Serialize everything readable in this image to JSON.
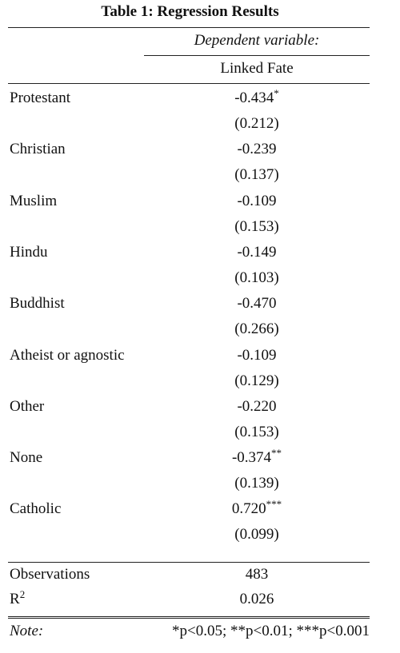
{
  "title": "Table 1: Regression Results",
  "dependent_variable_label": "Dependent variable:",
  "dependent_variable_name": "Linked Fate",
  "rows": [
    {
      "label": "Protestant",
      "coef": "-0.434",
      "stars": "*",
      "se": "(0.212)"
    },
    {
      "label": "Christian",
      "coef": "-0.239",
      "stars": "",
      "se": "(0.137)"
    },
    {
      "label": "Muslim",
      "coef": "-0.109",
      "stars": "",
      "se": "(0.153)"
    },
    {
      "label": "Hindu",
      "coef": "-0.149",
      "stars": "",
      "se": "(0.103)"
    },
    {
      "label": "Buddhist",
      "coef": "-0.470",
      "stars": "",
      "se": "(0.266)"
    },
    {
      "label": "Atheist or agnostic",
      "coef": "-0.109",
      "stars": "",
      "se": "(0.129)"
    },
    {
      "label": "Other",
      "coef": "-0.220",
      "stars": "",
      "se": "(0.153)"
    },
    {
      "label": "None",
      "coef": "-0.374",
      "stars": "**",
      "se": "(0.139)"
    },
    {
      "label": "Catholic",
      "coef": "0.720",
      "stars": "***",
      "se": "(0.099)"
    }
  ],
  "stats": [
    {
      "label": "Observations",
      "value": "483"
    },
    {
      "label": "R",
      "label_sup": "2",
      "value": "0.026"
    }
  ],
  "note": {
    "label": "Note:",
    "text": "*p<0.05; **p<0.01; ***p<0.001"
  }
}
